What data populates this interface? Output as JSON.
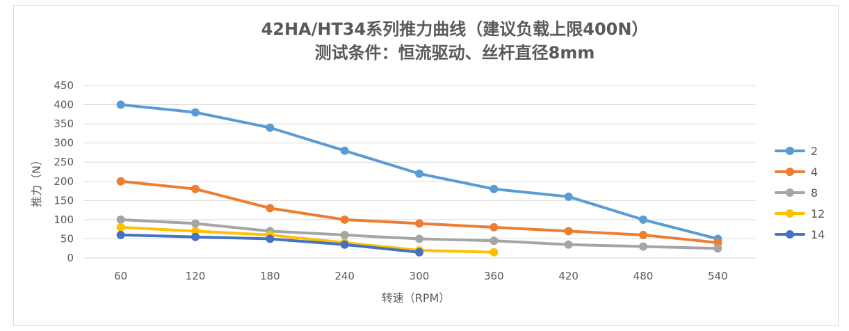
{
  "chart_data": {
    "type": "line",
    "title": "42HA/HT34系列推力曲线（建议负载上限400N）",
    "subtitle": "测试条件：恒流驱动、丝杆直径8mm",
    "xlabel": "转速（RPM）",
    "ylabel": "推力（N）",
    "categories": [
      "60",
      "120",
      "180",
      "240",
      "300",
      "360",
      "420",
      "480",
      "540"
    ],
    "yticks": [
      0,
      50,
      100,
      150,
      200,
      250,
      300,
      350,
      400,
      450
    ],
    "ylim": [
      0,
      450
    ],
    "grid": true,
    "legend_position": "right",
    "series": [
      {
        "name": "2",
        "color": "#5B9BD5",
        "values": [
          400,
          380,
          340,
          280,
          220,
          180,
          160,
          100,
          50
        ]
      },
      {
        "name": "4",
        "color": "#ED7D31",
        "values": [
          200,
          180,
          130,
          100,
          90,
          80,
          70,
          60,
          40
        ]
      },
      {
        "name": "8",
        "color": "#A5A5A5",
        "values": [
          100,
          90,
          70,
          60,
          50,
          45,
          35,
          30,
          25
        ]
      },
      {
        "name": "12",
        "color": "#FFC000",
        "values": [
          80,
          70,
          60,
          40,
          20,
          15,
          null,
          null,
          null
        ]
      },
      {
        "name": "14",
        "color": "#4472C4",
        "values": [
          60,
          55,
          50,
          35,
          15,
          null,
          null,
          null,
          null
        ]
      }
    ]
  }
}
